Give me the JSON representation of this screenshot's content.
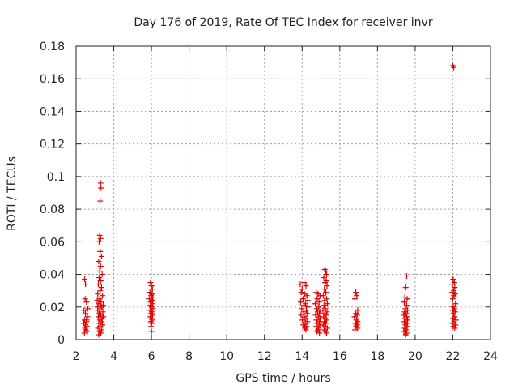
{
  "chart_data": {
    "type": "scatter",
    "title": "Day 176 of 2019, Rate Of TEC Index for receiver invr",
    "xlabel": "GPS time / hours",
    "ylabel": "ROTI / TECUs",
    "xlim": [
      2,
      24
    ],
    "ylim": [
      0,
      0.18
    ],
    "x_ticks": [
      2,
      4,
      6,
      8,
      10,
      12,
      14,
      16,
      18,
      20,
      22,
      24
    ],
    "x_tick_labels": [
      "2",
      "4",
      "6",
      "8",
      "10",
      "12",
      "14",
      "16",
      "18",
      "20",
      "22",
      "24"
    ],
    "y_ticks": [
      0,
      0.02,
      0.04,
      0.06,
      0.08,
      0.1,
      0.12,
      0.14,
      0.16,
      0.18
    ],
    "y_tick_labels": [
      "0",
      "0.02",
      "0.04",
      "0.06",
      "0.08",
      "0.1",
      "0.12",
      "0.14",
      "0.16",
      "0.18"
    ],
    "grid": true,
    "marker": "+",
    "color": "#e00000",
    "series": [
      {
        "name": "ROTI",
        "points": [
          [
            2.45,
            0.037
          ],
          [
            2.5,
            0.034
          ],
          [
            2.48,
            0.025
          ],
          [
            2.55,
            0.023
          ],
          [
            2.42,
            0.018
          ],
          [
            2.5,
            0.016
          ],
          [
            2.6,
            0.014
          ],
          [
            2.45,
            0.012
          ],
          [
            2.55,
            0.011
          ],
          [
            2.5,
            0.009
          ],
          [
            2.58,
            0.008
          ],
          [
            2.47,
            0.007
          ],
          [
            2.52,
            0.006
          ],
          [
            2.6,
            0.005
          ],
          [
            2.44,
            0.004
          ],
          [
            2.56,
            0.012
          ],
          [
            2.62,
            0.019
          ],
          [
            2.4,
            0.01
          ],
          [
            3.3,
            0.096
          ],
          [
            3.32,
            0.093
          ],
          [
            3.28,
            0.085
          ],
          [
            3.25,
            0.064
          ],
          [
            3.3,
            0.062
          ],
          [
            3.22,
            0.06
          ],
          [
            3.28,
            0.054
          ],
          [
            3.35,
            0.051
          ],
          [
            3.2,
            0.048
          ],
          [
            3.3,
            0.045
          ],
          [
            3.25,
            0.042
          ],
          [
            3.38,
            0.04
          ],
          [
            3.22,
            0.038
          ],
          [
            3.3,
            0.036
          ],
          [
            3.18,
            0.034
          ],
          [
            3.35,
            0.032
          ],
          [
            3.28,
            0.03
          ],
          [
            3.15,
            0.028
          ],
          [
            3.4,
            0.027
          ],
          [
            3.25,
            0.025
          ],
          [
            3.32,
            0.023
          ],
          [
            3.2,
            0.022
          ],
          [
            3.36,
            0.02
          ],
          [
            3.28,
            0.019
          ],
          [
            3.15,
            0.018
          ],
          [
            3.42,
            0.017
          ],
          [
            3.22,
            0.016
          ],
          [
            3.3,
            0.015
          ],
          [
            3.18,
            0.014
          ],
          [
            3.38,
            0.013
          ],
          [
            3.26,
            0.012
          ],
          [
            3.34,
            0.011
          ],
          [
            3.2,
            0.01
          ],
          [
            3.4,
            0.009
          ],
          [
            3.28,
            0.008
          ],
          [
            3.16,
            0.007
          ],
          [
            3.36,
            0.006
          ],
          [
            3.24,
            0.005
          ],
          [
            3.32,
            0.004
          ],
          [
            3.2,
            0.003
          ],
          [
            3.44,
            0.021
          ],
          [
            3.12,
            0.024
          ],
          [
            3.44,
            0.014
          ],
          [
            3.14,
            0.02
          ],
          [
            5.95,
            0.035
          ],
          [
            6.0,
            0.033
          ],
          [
            6.05,
            0.031
          ],
          [
            5.92,
            0.029
          ],
          [
            6.02,
            0.028
          ],
          [
            5.98,
            0.027
          ],
          [
            6.08,
            0.026
          ],
          [
            5.9,
            0.025
          ],
          [
            6.04,
            0.024
          ],
          [
            5.96,
            0.023
          ],
          [
            6.06,
            0.022
          ],
          [
            5.94,
            0.021
          ],
          [
            6.0,
            0.02
          ],
          [
            6.08,
            0.019
          ],
          [
            5.92,
            0.018
          ],
          [
            6.02,
            0.017
          ],
          [
            5.98,
            0.016
          ],
          [
            6.06,
            0.015
          ],
          [
            5.94,
            0.014
          ],
          [
            6.0,
            0.013
          ],
          [
            6.04,
            0.012
          ],
          [
            5.96,
            0.011
          ],
          [
            6.02,
            0.01
          ],
          [
            5.98,
            0.008
          ],
          [
            6.0,
            0.005
          ],
          [
            13.9,
            0.034
          ],
          [
            14.1,
            0.035
          ],
          [
            14.2,
            0.033
          ],
          [
            14.0,
            0.031
          ],
          [
            13.95,
            0.029
          ],
          [
            14.15,
            0.028
          ],
          [
            14.25,
            0.027
          ],
          [
            14.05,
            0.025
          ],
          [
            13.92,
            0.023
          ],
          [
            14.18,
            0.022
          ],
          [
            14.1,
            0.021
          ],
          [
            14.3,
            0.02
          ],
          [
            13.98,
            0.019
          ],
          [
            14.22,
            0.018
          ],
          [
            14.08,
            0.017
          ],
          [
            14.26,
            0.016
          ],
          [
            13.94,
            0.015
          ],
          [
            14.12,
            0.014
          ],
          [
            14.2,
            0.013
          ],
          [
            14.02,
            0.012
          ],
          [
            14.28,
            0.011
          ],
          [
            14.16,
            0.01
          ],
          [
            14.06,
            0.009
          ],
          [
            14.24,
            0.008
          ],
          [
            14.14,
            0.007
          ],
          [
            14.2,
            0.006
          ],
          [
            14.3,
            0.024
          ],
          [
            14.75,
            0.029
          ],
          [
            14.85,
            0.028
          ],
          [
            14.95,
            0.027
          ],
          [
            14.8,
            0.025
          ],
          [
            14.9,
            0.023
          ],
          [
            14.7,
            0.022
          ],
          [
            14.88,
            0.02
          ],
          [
            14.78,
            0.019
          ],
          [
            14.98,
            0.018
          ],
          [
            14.82,
            0.017
          ],
          [
            14.92,
            0.016
          ],
          [
            14.72,
            0.015
          ],
          [
            14.86,
            0.014
          ],
          [
            14.96,
            0.013
          ],
          [
            14.76,
            0.012
          ],
          [
            14.9,
            0.011
          ],
          [
            14.8,
            0.01
          ],
          [
            14.94,
            0.009
          ],
          [
            14.74,
            0.008
          ],
          [
            14.88,
            0.007
          ],
          [
            14.84,
            0.006
          ],
          [
            14.78,
            0.005
          ],
          [
            14.92,
            0.004
          ],
          [
            15.2,
            0.043
          ],
          [
            15.25,
            0.042
          ],
          [
            15.3,
            0.04
          ],
          [
            15.15,
            0.038
          ],
          [
            15.28,
            0.036
          ],
          [
            15.22,
            0.035
          ],
          [
            15.32,
            0.033
          ],
          [
            15.18,
            0.031
          ],
          [
            15.26,
            0.029
          ],
          [
            15.12,
            0.027
          ],
          [
            15.3,
            0.025
          ],
          [
            15.2,
            0.024
          ],
          [
            15.34,
            0.022
          ],
          [
            15.16,
            0.021
          ],
          [
            15.24,
            0.019
          ],
          [
            15.1,
            0.018
          ],
          [
            15.32,
            0.017
          ],
          [
            15.2,
            0.016
          ],
          [
            15.28,
            0.015
          ],
          [
            15.14,
            0.014
          ],
          [
            15.22,
            0.013
          ],
          [
            15.3,
            0.012
          ],
          [
            15.18,
            0.011
          ],
          [
            15.26,
            0.01
          ],
          [
            15.12,
            0.009
          ],
          [
            15.2,
            0.008
          ],
          [
            15.34,
            0.007
          ],
          [
            15.16,
            0.006
          ],
          [
            15.24,
            0.005
          ],
          [
            15.3,
            0.004
          ],
          [
            16.85,
            0.029
          ],
          [
            16.9,
            0.027
          ],
          [
            16.8,
            0.025
          ],
          [
            16.95,
            0.018
          ],
          [
            16.85,
            0.016
          ],
          [
            16.92,
            0.015
          ],
          [
            16.78,
            0.014
          ],
          [
            16.88,
            0.012
          ],
          [
            16.95,
            0.011
          ],
          [
            16.82,
            0.01
          ],
          [
            16.9,
            0.009
          ],
          [
            16.86,
            0.008
          ],
          [
            16.94,
            0.007
          ],
          [
            16.8,
            0.006
          ],
          [
            16.92,
            0.009
          ],
          [
            19.55,
            0.039
          ],
          [
            19.5,
            0.032
          ],
          [
            19.45,
            0.026
          ],
          [
            19.58,
            0.025
          ],
          [
            19.42,
            0.023
          ],
          [
            19.55,
            0.021
          ],
          [
            19.48,
            0.019
          ],
          [
            19.6,
            0.018
          ],
          [
            19.44,
            0.017
          ],
          [
            19.52,
            0.016
          ],
          [
            19.4,
            0.015
          ],
          [
            19.56,
            0.014
          ],
          [
            19.46,
            0.013
          ],
          [
            19.6,
            0.012
          ],
          [
            19.42,
            0.011
          ],
          [
            19.54,
            0.01
          ],
          [
            19.48,
            0.009
          ],
          [
            19.58,
            0.008
          ],
          [
            19.44,
            0.007
          ],
          [
            19.52,
            0.006
          ],
          [
            19.4,
            0.005
          ],
          [
            19.56,
            0.004
          ],
          [
            19.5,
            0.003
          ],
          [
            22.0,
            0.168
          ],
          [
            22.05,
            0.167
          ],
          [
            22.02,
            0.037
          ],
          [
            22.08,
            0.035
          ],
          [
            21.98,
            0.034
          ],
          [
            22.1,
            0.032
          ],
          [
            22.04,
            0.03
          ],
          [
            21.96,
            0.029
          ],
          [
            22.12,
            0.028
          ],
          [
            22.06,
            0.027
          ],
          [
            22.0,
            0.025
          ],
          [
            22.14,
            0.022
          ],
          [
            22.02,
            0.02
          ],
          [
            22.08,
            0.019
          ],
          [
            21.98,
            0.018
          ],
          [
            22.12,
            0.017
          ],
          [
            22.04,
            0.016
          ],
          [
            22.1,
            0.014
          ],
          [
            22.0,
            0.013
          ],
          [
            22.16,
            0.012
          ],
          [
            22.06,
            0.011
          ],
          [
            21.96,
            0.01
          ],
          [
            22.14,
            0.009
          ],
          [
            22.02,
            0.008
          ],
          [
            22.1,
            0.007
          ]
        ]
      }
    ]
  }
}
